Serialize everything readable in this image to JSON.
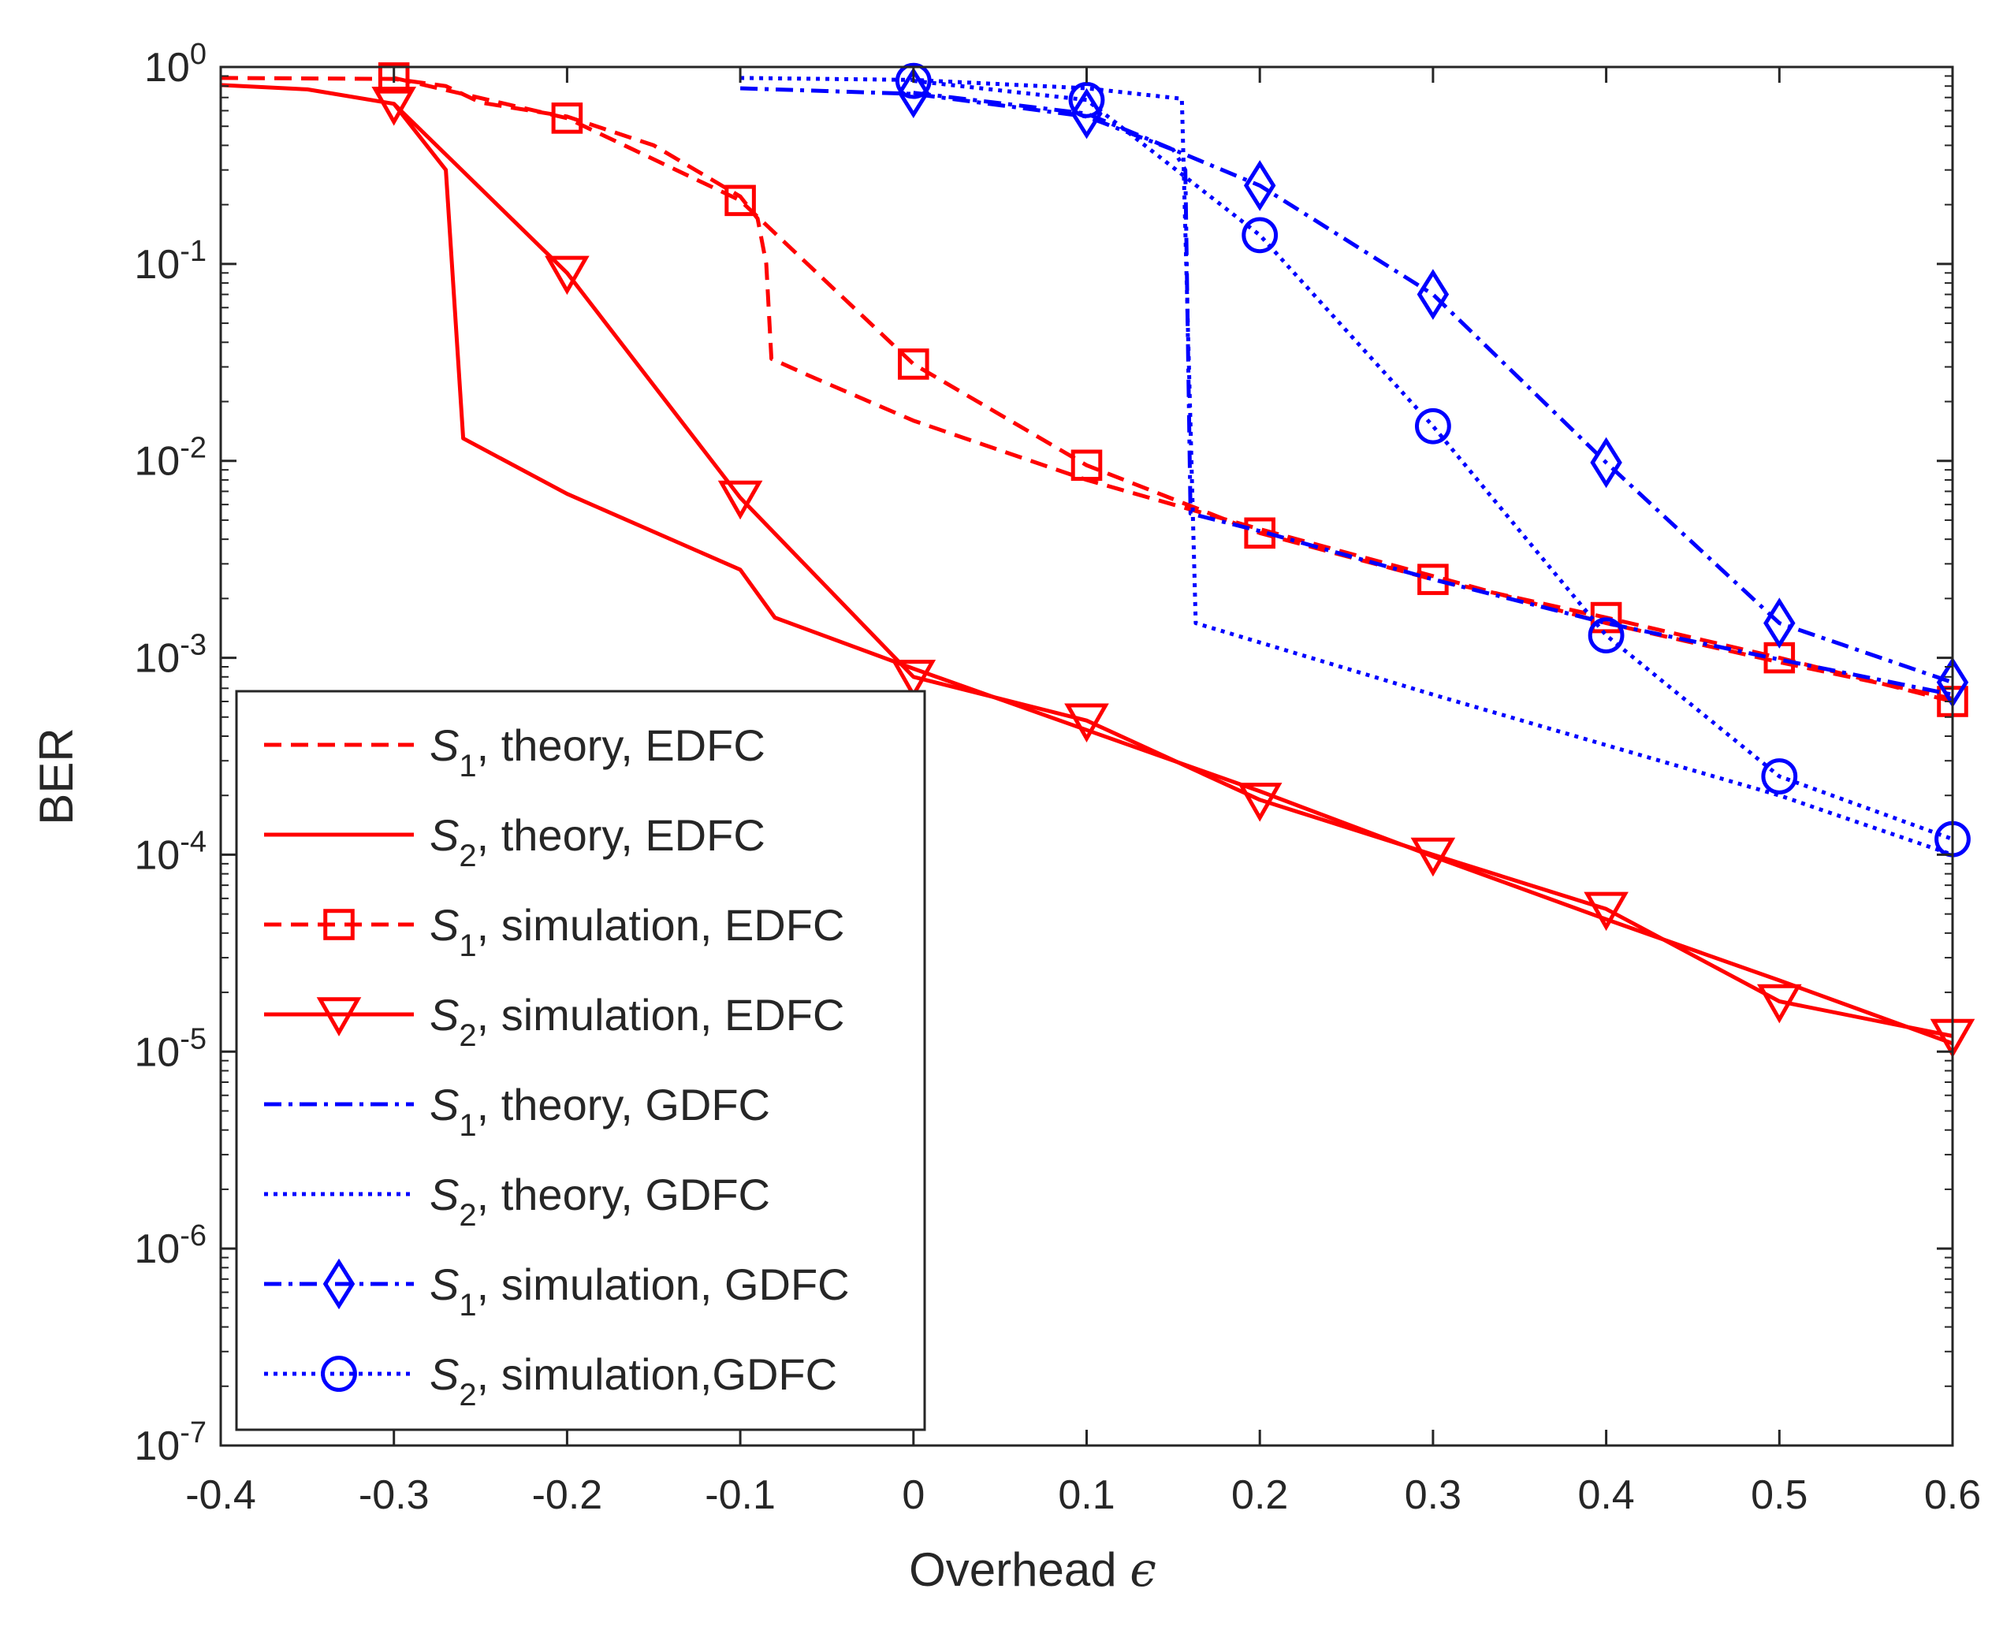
{
  "chart_data": {
    "type": "line",
    "xlabel": "Overhead",
    "xlabel_symbol": "ϵ",
    "ylabel": "BER",
    "xlim": [
      -0.4,
      0.6
    ],
    "ylim": [
      1e-07,
      1
    ],
    "y_scale": "log",
    "grid": false,
    "legend_position": "bottom-left",
    "x_ticks": [
      -0.4,
      -0.3,
      -0.2,
      -0.1,
      0,
      0.1,
      0.2,
      0.3,
      0.4,
      0.5,
      0.6
    ],
    "x_tick_labels": [
      "-0.4",
      "-0.3",
      "-0.2",
      "-0.1",
      "0",
      "0.1",
      "0.2",
      "0.3",
      "0.4",
      "0.5",
      "0.6"
    ],
    "y_ticks": [
      {
        "value": 1,
        "base": "10",
        "exp": "0"
      },
      {
        "value": 0.1,
        "base": "10",
        "exp": "-1"
      },
      {
        "value": 0.01,
        "base": "10",
        "exp": "-2"
      },
      {
        "value": 0.001,
        "base": "10",
        "exp": "-3"
      },
      {
        "value": 0.0001,
        "base": "10",
        "exp": "-4"
      },
      {
        "value": 1e-05,
        "base": "10",
        "exp": "-5"
      },
      {
        "value": 1e-06,
        "base": "10",
        "exp": "-6"
      },
      {
        "value": 1e-07,
        "base": "10",
        "exp": "-7"
      }
    ],
    "series": [
      {
        "label": {
          "sym": "S",
          "sub": "1",
          "rest": ", theory, EDFC"
        },
        "color": "#ff0000",
        "dash": "dashed",
        "marker": "none",
        "points": [
          [
            -0.4,
            0.88
          ],
          [
            -0.3,
            0.87
          ],
          [
            -0.27,
            0.8
          ],
          [
            -0.25,
            0.66
          ],
          [
            -0.2,
            0.56
          ],
          [
            -0.15,
            0.4
          ],
          [
            -0.1,
            0.22
          ],
          [
            -0.09,
            0.17
          ],
          [
            -0.085,
            0.1
          ],
          [
            -0.082,
            0.033
          ],
          [
            -0.06,
            0.027
          ],
          [
            0,
            0.016
          ],
          [
            0.1,
            0.008
          ],
          [
            0.2,
            0.0045
          ],
          [
            0.3,
            0.0026
          ],
          [
            0.4,
            0.0015
          ],
          [
            0.5,
            0.00095
          ],
          [
            0.6,
            0.00062
          ]
        ]
      },
      {
        "label": {
          "sym": "S",
          "sub": "2",
          "rest": ", theory, EDFC"
        },
        "color": "#ff0000",
        "dash": "solid",
        "marker": "none",
        "points": [
          [
            -0.4,
            0.81
          ],
          [
            -0.35,
            0.77
          ],
          [
            -0.3,
            0.65
          ],
          [
            -0.27,
            0.3
          ],
          [
            -0.26,
            0.013
          ],
          [
            -0.2,
            0.0068
          ],
          [
            -0.1,
            0.0028
          ],
          [
            -0.093,
            0.0023
          ],
          [
            -0.08,
            0.0016
          ],
          [
            0,
            0.00088
          ],
          [
            0.1,
            0.00043
          ],
          [
            0.2,
            0.00021
          ],
          [
            0.3,
            9.8e-05
          ],
          [
            0.4,
            4.7e-05
          ],
          [
            0.5,
            2.3e-05
          ],
          [
            0.6,
            1.1e-05
          ]
        ]
      },
      {
        "label": {
          "sym": "S",
          "sub": "1",
          "rest": ", simulation, EDFC"
        },
        "color": "#ff0000",
        "dash": "dashed",
        "marker": "square",
        "points": [
          [
            -0.3,
            0.88
          ],
          [
            -0.2,
            0.55
          ],
          [
            -0.1,
            0.21
          ],
          [
            0,
            0.031
          ],
          [
            0.1,
            0.0095
          ],
          [
            0.2,
            0.0043
          ],
          [
            0.3,
            0.0025
          ],
          [
            0.4,
            0.0016
          ],
          [
            0.5,
            0.001
          ],
          [
            0.6,
            0.0006
          ]
        ]
      },
      {
        "label": {
          "sym": "S",
          "sub": "2",
          "rest": ", simulation, EDFC"
        },
        "color": "#ff0000",
        "dash": "solid",
        "marker": "triangle-down",
        "points": [
          [
            -0.3,
            0.65
          ],
          [
            -0.2,
            0.09
          ],
          [
            -0.1,
            0.0065
          ],
          [
            0,
            0.0008
          ],
          [
            0.1,
            0.00048
          ],
          [
            0.2,
            0.00019
          ],
          [
            0.3,
            0.0001
          ],
          [
            0.4,
            5.3e-05
          ],
          [
            0.5,
            1.8e-05
          ],
          [
            0.6,
            1.2e-05
          ]
        ]
      },
      {
        "label": {
          "sym": "S",
          "sub": "1",
          "rest": ", theory, GDFC"
        },
        "color": "#0000ff",
        "dash": "dashdot",
        "marker": "none",
        "points": [
          [
            -0.1,
            0.78
          ],
          [
            0,
            0.73
          ],
          [
            0.1,
            0.56
          ],
          [
            0.15,
            0.38
          ],
          [
            0.157,
            0.3
          ],
          [
            0.16,
            0.0054
          ],
          [
            0.2,
            0.0044
          ],
          [
            0.3,
            0.0025
          ],
          [
            0.4,
            0.0015
          ],
          [
            0.5,
            0.00098
          ],
          [
            0.6,
            0.00065
          ]
        ]
      },
      {
        "label": {
          "sym": "S",
          "sub": "2",
          "rest": ", theory, GDFC"
        },
        "color": "#0000ff",
        "dash": "dotted",
        "marker": "none",
        "points": [
          [
            -0.1,
            0.88
          ],
          [
            0,
            0.86
          ],
          [
            0.1,
            0.78
          ],
          [
            0.155,
            0.69
          ],
          [
            0.163,
            0.0015
          ],
          [
            0.3,
            0.00065
          ],
          [
            0.4,
            0.00036
          ],
          [
            0.5,
            0.0002
          ],
          [
            0.6,
            0.0001
          ]
        ]
      },
      {
        "label": {
          "sym": "S",
          "sub": "1",
          "rest": ", simulation, GDFC"
        },
        "color": "#0000ff",
        "dash": "dashdot",
        "marker": "diamond",
        "points": [
          [
            0,
            0.74
          ],
          [
            0.1,
            0.58
          ],
          [
            0.2,
            0.25
          ],
          [
            0.3,
            0.07
          ],
          [
            0.4,
            0.0098
          ],
          [
            0.5,
            0.0015
          ],
          [
            0.6,
            0.00075
          ]
        ]
      },
      {
        "label": {
          "sym": "S",
          "sub": "2",
          "rest": ", simulation,GDFC"
        },
        "color": "#0000ff",
        "dash": "dotted",
        "marker": "circle",
        "points": [
          [
            0,
            0.85
          ],
          [
            0.1,
            0.68
          ],
          [
            0.2,
            0.14
          ],
          [
            0.3,
            0.015
          ],
          [
            0.4,
            0.0013
          ],
          [
            0.5,
            0.00025
          ],
          [
            0.6,
            0.00012
          ]
        ]
      }
    ]
  }
}
